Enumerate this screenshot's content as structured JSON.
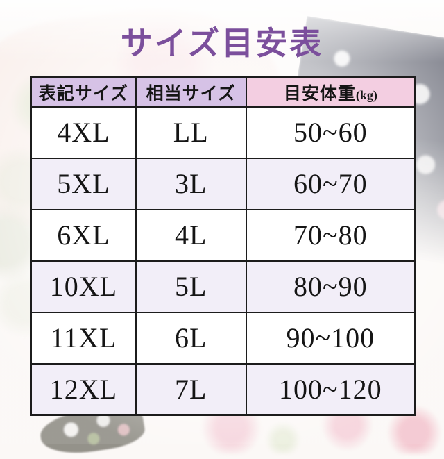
{
  "page": {
    "title": "サイズ目安表"
  },
  "size_table": {
    "headers": [
      {
        "label": "表記サイズ"
      },
      {
        "label": "相当サイズ"
      },
      {
        "label": "目安体重",
        "unit": "(kg)"
      }
    ],
    "rows": [
      {
        "display_size": "4XL",
        "equivalent_size": "LL",
        "weight_range": "50~60"
      },
      {
        "display_size": "5XL",
        "equivalent_size": "3L",
        "weight_range": "60~70"
      },
      {
        "display_size": "6XL",
        "equivalent_size": "4L",
        "weight_range": "70~80"
      },
      {
        "display_size": "10XL",
        "equivalent_size": "5L",
        "weight_range": "80~90"
      },
      {
        "display_size": "11XL",
        "equivalent_size": "6L",
        "weight_range": "90~100"
      },
      {
        "display_size": "12XL",
        "equivalent_size": "7L",
        "weight_range": "100~120"
      }
    ]
  },
  "chart_data": {
    "type": "table",
    "title": "サイズ目安表",
    "columns": [
      "表記サイズ",
      "相当サイズ",
      "目安体重(kg)"
    ],
    "rows": [
      [
        "4XL",
        "LL",
        "50~60"
      ],
      [
        "5XL",
        "3L",
        "60~70"
      ],
      [
        "6XL",
        "4L",
        "70~80"
      ],
      [
        "10XL",
        "5L",
        "80~90"
      ],
      [
        "11XL",
        "6L",
        "90~100"
      ],
      [
        "12XL",
        "7L",
        "100~120"
      ]
    ],
    "layout_hints": {
      "header_row": true,
      "grid": "on",
      "zebra_rows": "white / lavender alternating"
    }
  },
  "colors": {
    "title_purple": "#7b4f9c",
    "header_purple": "#d6c2e6",
    "header_pink": "#f3cee1",
    "row_lavender": "#f2eef8",
    "row_white": "#ffffff",
    "table_border": "#1c1c1c",
    "cell_text": "#151515"
  }
}
